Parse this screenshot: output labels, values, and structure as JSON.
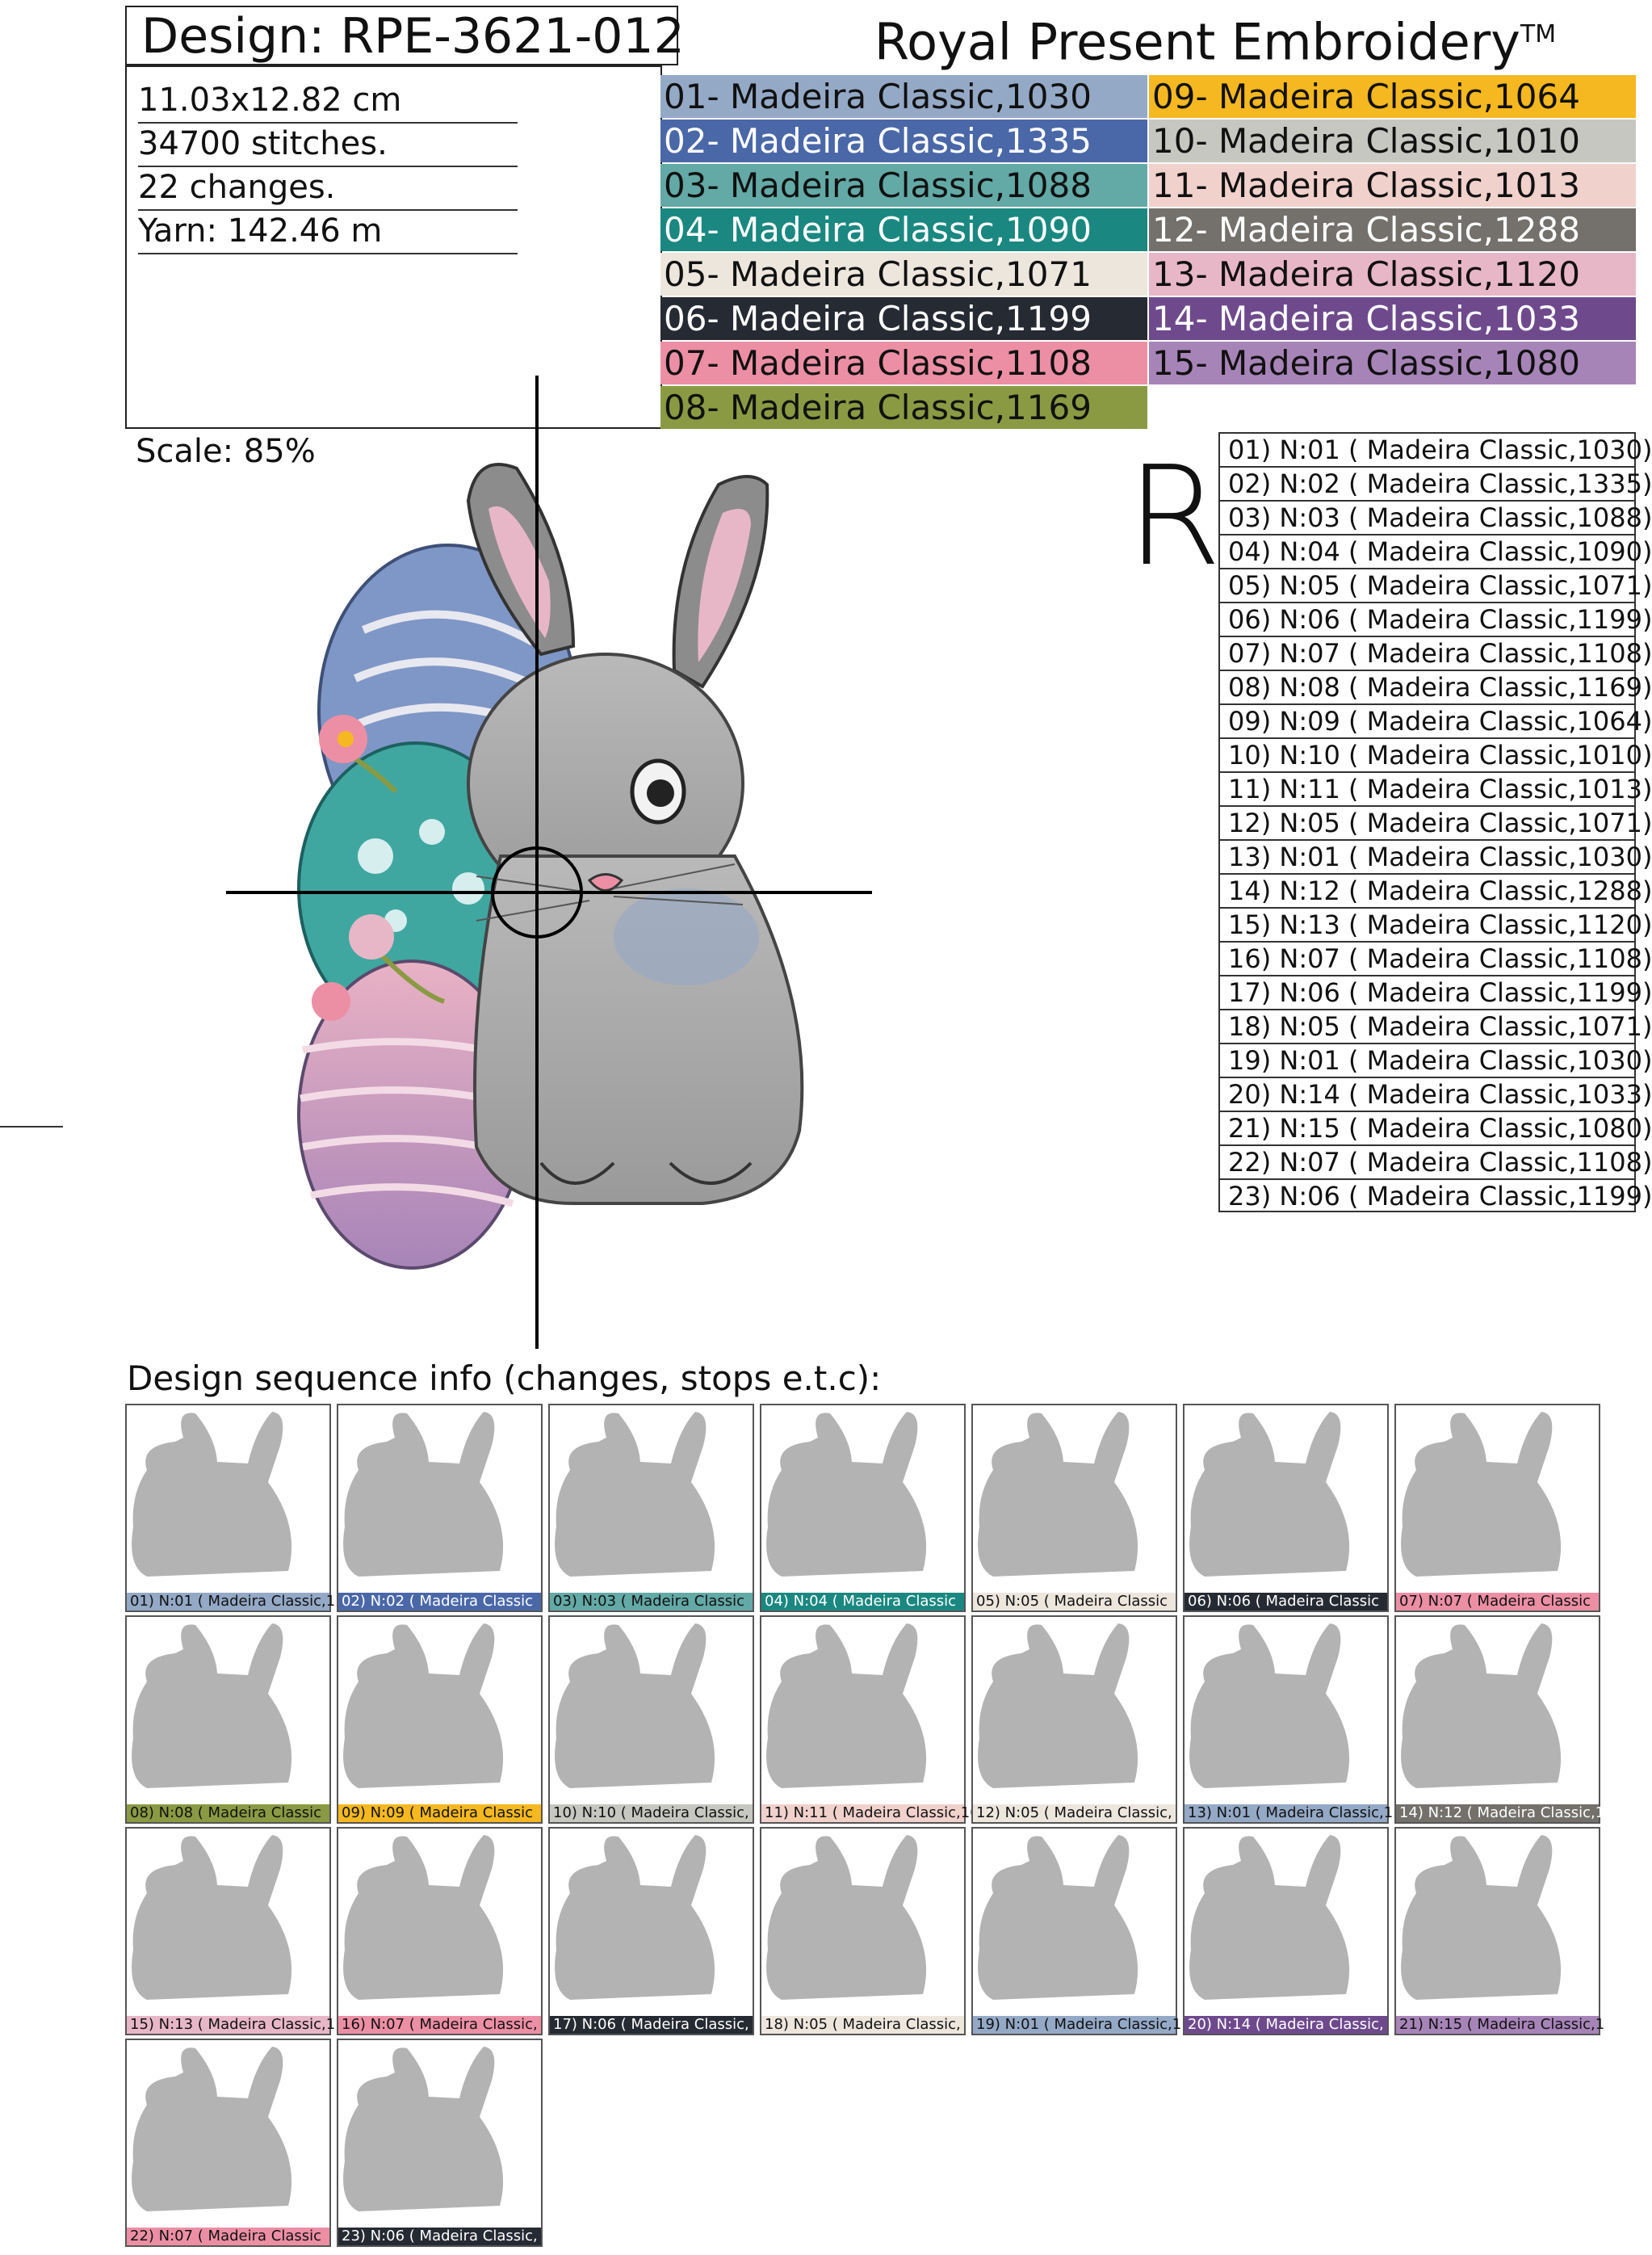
{
  "header": {
    "design": "Design: RPE-3621-012",
    "brand": "Royal Present Embroidery",
    "trademark": "TM"
  },
  "info": {
    "size": "11.03x12.82 cm",
    "stitches": "34700 stitches.",
    "changes": "22 changes.",
    "yarn": "Yarn: 142.46 m"
  },
  "legend": [
    {
      "label": "01- Madeira Classic,1030",
      "color": "#94a9c6",
      "text": "#111111"
    },
    {
      "label": "02- Madeira Classic,1335",
      "color": "#4a68a8",
      "text": "#ffffff"
    },
    {
      "label": "03- Madeira Classic,1088",
      "color": "#63a9a6",
      "text": "#111111"
    },
    {
      "label": "04- Madeira Classic,1090",
      "color": "#1a8880",
      "text": "#ffffff"
    },
    {
      "label": "05- Madeira Classic,1071",
      "color": "#ece6dd",
      "text": "#111111"
    },
    {
      "label": "06- Madeira Classic,1199",
      "color": "#262a33",
      "text": "#ffffff"
    },
    {
      "label": "07- Madeira Classic,1108",
      "color": "#ec8fa4",
      "text": "#111111"
    },
    {
      "label": "08- Madeira Classic,1169",
      "color": "#8a9a43",
      "text": "#111111"
    },
    {
      "label": "09- Madeira Classic,1064",
      "color": "#f5b820",
      "text": "#111111"
    },
    {
      "label": "10- Madeira Classic,1010",
      "color": "#c6c7c0",
      "text": "#111111"
    },
    {
      "label": "11- Madeira Classic,1013",
      "color": "#f1d1cc",
      "text": "#111111"
    },
    {
      "label": "12- Madeira Classic,1288",
      "color": "#74716c",
      "text": "#ffffff"
    },
    {
      "label": "13- Madeira Classic,1120",
      "color": "#e8b7c7",
      "text": "#111111"
    },
    {
      "label": "14- Madeira Classic,1033",
      "color": "#6e4a8d",
      "text": "#ffffff"
    },
    {
      "label": "15- Madeira Classic,1080",
      "color": "#a784b8",
      "text": "#111111"
    }
  ],
  "scale": "Scale: 85%",
  "r_mark": "R",
  "sequence": [
    "01) N:01 ( Madeira Classic,1030)",
    "02) N:02 ( Madeira Classic,1335)",
    "03) N:03 ( Madeira Classic,1088)",
    "04) N:04 ( Madeira Classic,1090)",
    "05) N:05 ( Madeira Classic,1071)",
    "06) N:06 ( Madeira Classic,1199)",
    "07) N:07 ( Madeira Classic,1108)",
    "08) N:08 ( Madeira Classic,1169)",
    "09) N:09 ( Madeira Classic,1064)",
    "10) N:10 ( Madeira Classic,1010)",
    "11) N:11 ( Madeira Classic,1013)",
    "12) N:05 ( Madeira Classic,1071)",
    "13) N:01 ( Madeira Classic,1030)",
    "14) N:12 ( Madeira Classic,1288)",
    "15) N:13 ( Madeira Classic,1120)",
    "16) N:07 ( Madeira Classic,1108)",
    "17) N:06 ( Madeira Classic,1199)",
    "18) N:05 ( Madeira Classic,1071)",
    "19) N:01 ( Madeira Classic,1030)",
    "20) N:14 ( Madeira Classic,1033)",
    "21) N:15 ( Madeira Classic,1080)",
    "22) N:07 ( Madeira Classic,1108)",
    "23) N:06 ( Madeira Classic,1199)"
  ],
  "sequence_heading": "Design sequence info (changes, stops e.t.c):",
  "thumbnails": [
    {
      "label": "01) N:01 ( Madeira Classic,1",
      "color": "#94a9c6",
      "text": "#111111"
    },
    {
      "label": "02) N:02 ( Madeira Classic",
      "color": "#4a68a8",
      "text": "#ffffff"
    },
    {
      "label": "03) N:03 ( Madeira Classic",
      "color": "#63a9a6",
      "text": "#111111"
    },
    {
      "label": "04) N:04 ( Madeira Classic",
      "color": "#1a8880",
      "text": "#ffffff"
    },
    {
      "label": "05) N:05 ( Madeira Classic",
      "color": "#ece6dd",
      "text": "#111111"
    },
    {
      "label": "06) N:06 ( Madeira Classic",
      "color": "#262a33",
      "text": "#ffffff"
    },
    {
      "label": "07) N:07 ( Madeira Classic",
      "color": "#ec8fa4",
      "text": "#111111"
    },
    {
      "label": "08) N:08 ( Madeira Classic",
      "color": "#8a9a43",
      "text": "#111111"
    },
    {
      "label": "09) N:09 ( Madeira Classic",
      "color": "#f5b820",
      "text": "#111111"
    },
    {
      "label": "10) N:10 ( Madeira Classic,",
      "color": "#c6c7c0",
      "text": "#111111"
    },
    {
      "label": "11) N:11 ( Madeira Classic,10",
      "color": "#f1d1cc",
      "text": "#111111"
    },
    {
      "label": "12) N:05 ( Madeira Classic,",
      "color": "#ece6dd",
      "text": "#111111"
    },
    {
      "label": "13) N:01 ( Madeira Classic,1",
      "color": "#94a9c6",
      "text": "#111111"
    },
    {
      "label": "14) N:12 ( Madeira Classic,1",
      "color": "#74716c",
      "text": "#ffffff"
    },
    {
      "label": "15) N:13 ( Madeira Classic,1",
      "color": "#e8b7c7",
      "text": "#111111"
    },
    {
      "label": "16) N:07 ( Madeira Classic,",
      "color": "#ec8fa4",
      "text": "#111111"
    },
    {
      "label": "17) N:06 ( Madeira Classic,",
      "color": "#262a33",
      "text": "#ffffff"
    },
    {
      "label": "18) N:05 ( Madeira Classic,",
      "color": "#ece6dd",
      "text": "#111111"
    },
    {
      "label": "19) N:01 ( Madeira Classic,1",
      "color": "#94a9c6",
      "text": "#111111"
    },
    {
      "label": "20) N:14 ( Madeira Classic,",
      "color": "#6e4a8d",
      "text": "#ffffff"
    },
    {
      "label": "21) N:15 ( Madeira Classic,1",
      "color": "#a784b8",
      "text": "#111111"
    },
    {
      "label": "22) N:07 ( Madeira Classic",
      "color": "#ec8fa4",
      "text": "#111111"
    },
    {
      "label": "23) N:06 ( Madeira Classic,",
      "color": "#262a33",
      "text": "#ffffff"
    }
  ]
}
